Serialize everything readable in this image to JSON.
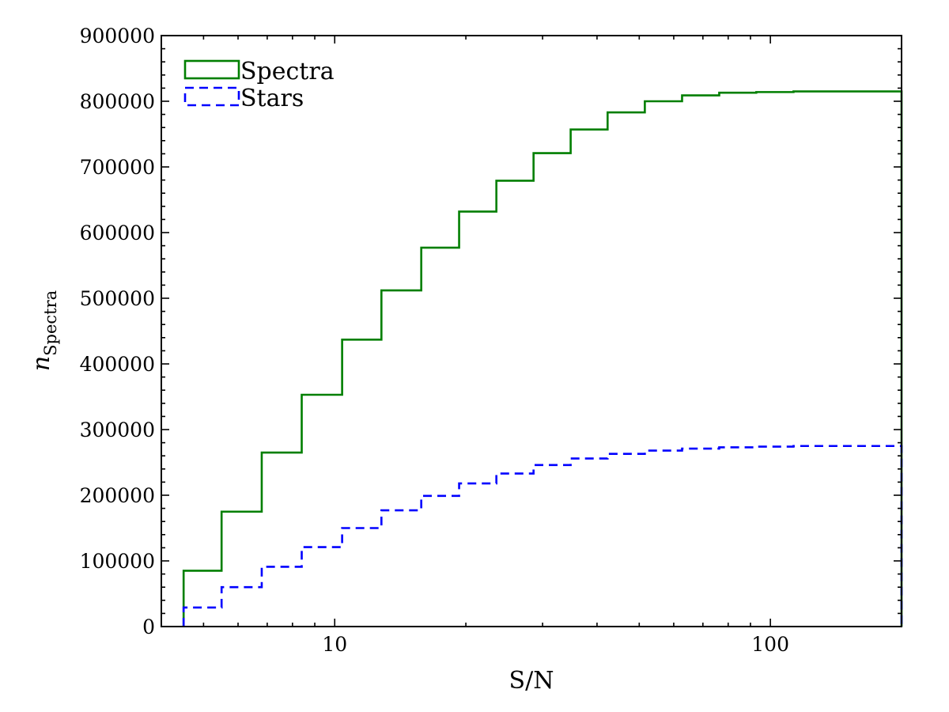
{
  "chart_data": {
    "type": "line",
    "step": true,
    "x_scale": "log",
    "xlabel": "S/N",
    "ylabel_main": "n",
    "ylabel_sub": "Spectra",
    "xlim": [
      4,
      200
    ],
    "ylim": [
      0,
      900000
    ],
    "x_ticks": [
      {
        "value": 10,
        "label": "10"
      },
      {
        "value": 100,
        "label": "100"
      }
    ],
    "y_ticks": [
      {
        "value": 0,
        "label": "0"
      },
      {
        "value": 100000,
        "label": "100000"
      },
      {
        "value": 200000,
        "label": "200000"
      },
      {
        "value": 300000,
        "label": "300000"
      },
      {
        "value": 400000,
        "label": "400000"
      },
      {
        "value": 500000,
        "label": "500000"
      },
      {
        "value": 600000,
        "label": "600000"
      },
      {
        "value": 700000,
        "label": "700000"
      },
      {
        "value": 800000,
        "label": "800000"
      },
      {
        "value": 900000,
        "label": "900000"
      }
    ],
    "legend": {
      "placement": "top-left"
    },
    "bin_edges": [
      4.5,
      5.5,
      6.8,
      8.4,
      10.4,
      12.8,
      15.8,
      19.3,
      23.5,
      28.6,
      34.8,
      42.3,
      51.5,
      62.7,
      76.3,
      92.8,
      113,
      138,
      168,
      200
    ],
    "series": [
      {
        "name": "Spectra",
        "color": "#007f00",
        "dash": "solid",
        "values": [
          85000,
          175000,
          265000,
          353000,
          437000,
          512000,
          577000,
          632000,
          679000,
          721000,
          757000,
          783000,
          800000,
          809000,
          813000,
          814000,
          815000,
          815000,
          815000
        ]
      },
      {
        "name": "Stars",
        "color": "#0000ff",
        "dash": "dashed",
        "values": [
          29000,
          60000,
          91000,
          121000,
          150000,
          177000,
          199000,
          218000,
          233000,
          246000,
          256000,
          263000,
          268000,
          271000,
          273000,
          274000,
          275000,
          275000,
          275000
        ]
      }
    ]
  }
}
